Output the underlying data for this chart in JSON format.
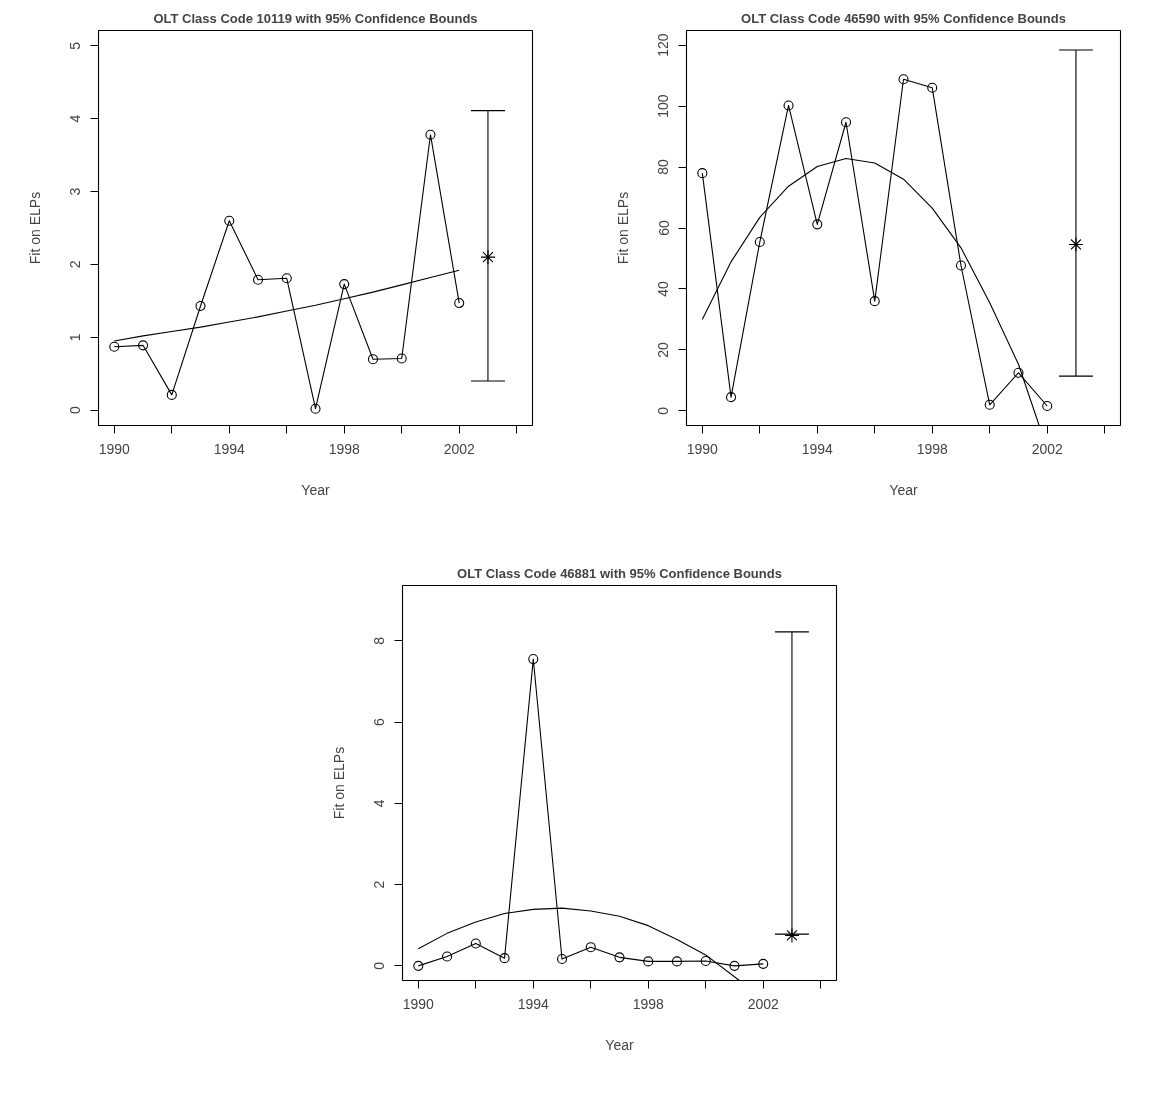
{
  "chart_data": [
    {
      "type": "line",
      "title": "OLT Class Code 10119 with 95% Confidence Bounds",
      "xlabel": "Year",
      "ylabel": "Fit on ELPs",
      "x": [
        1990,
        1991,
        1992,
        1993,
        1994,
        1995,
        1996,
        1997,
        1998,
        1999,
        2000,
        2001,
        2002
      ],
      "xlim": [
        1989.45,
        2004.55
      ],
      "xticks": [
        1990,
        {
          "value": 1992,
          "label": null
        },
        1994,
        {
          "value": 1996,
          "label": null
        },
        1998,
        {
          "value": 2000,
          "label": null
        },
        2002,
        {
          "value": 2004,
          "label": null
        }
      ],
      "ylim": [
        -0.21,
        5.21
      ],
      "yticks": [
        0,
        1,
        2,
        3,
        4,
        5
      ],
      "grid": false,
      "series": [
        {
          "color": "#000000",
          "marker": "circle",
          "values": [
            0.87,
            0.89,
            0.21,
            1.43,
            2.6,
            1.79,
            1.81,
            0.02,
            1.73,
            0.7,
            0.71,
            3.78,
            1.47
          ]
        },
        {
          "color": "#000000",
          "marker": "none",
          "values": [
            0.95,
            1.02,
            1.08,
            1.14,
            1.21,
            1.28,
            1.36,
            1.44,
            1.53,
            1.62,
            1.72,
            1.82,
            1.92
          ]
        },
        {
          "type": "scatter",
          "color": "#000000",
          "marker": "cross",
          "x": [
            2003
          ],
          "values": [
            2.1
          ],
          "errors": [
            [
              0.4,
              4.11
            ]
          ]
        }
      ]
    },
    {
      "type": "line",
      "title": "OLT Class Code 46590 with 95% Confidence Bounds",
      "xlabel": "Year",
      "ylabel": "Fit on ELPs",
      "x": [
        1990,
        1991,
        1992,
        1993,
        1994,
        1995,
        1996,
        1997,
        1998,
        1999,
        2000,
        2001,
        2002
      ],
      "xlim": [
        1989.45,
        2004.55
      ],
      "xticks": [
        1990,
        {
          "value": 1992,
          "label": null
        },
        1994,
        {
          "value": 1996,
          "label": null
        },
        1998,
        {
          "value": 2000,
          "label": null
        },
        2002,
        {
          "value": 2004,
          "label": null
        }
      ],
      "ylim": [
        -4.8,
        124.8
      ],
      "yticks": [
        0,
        20,
        40,
        60,
        80,
        100,
        120
      ],
      "grid": false,
      "series": [
        {
          "color": "#000000",
          "marker": "circle",
          "values": [
            78,
            4.5,
            55.4,
            100.2,
            61.2,
            94.7,
            36,
            108.8,
            106,
            47.7,
            2,
            12.5,
            1.6
          ]
        },
        {
          "color": "#000000",
          "marker": "none",
          "x": [
            1990,
            1991,
            1992,
            1993,
            1994,
            1995,
            1996,
            1997,
            1998,
            1999,
            2000,
            2001,
            2001.72
          ],
          "values": [
            30,
            48.9,
            63.5,
            73.7,
            80.2,
            82.8,
            81.3,
            76,
            66.5,
            53.5,
            35.5,
            15.3,
            -4.8
          ]
        },
        {
          "type": "scatter",
          "color": "#000000",
          "marker": "cross",
          "x": [
            2003
          ],
          "values": [
            54.6
          ],
          "errors": [
            [
              11.4,
              118.4
            ]
          ]
        }
      ]
    },
    {
      "type": "line",
      "title": "OLT Class Code 46881 with 95% Confidence Bounds",
      "xlabel": "Year",
      "ylabel": "Fit on ELPs",
      "x": [
        1990,
        1991,
        1992,
        1993,
        1994,
        1995,
        1996,
        1997,
        1998,
        1999,
        2000,
        2001,
        2002
      ],
      "xlim": [
        1989.45,
        2004.55
      ],
      "xticks": [
        1990,
        {
          "value": 1992,
          "label": null
        },
        1994,
        {
          "value": 1996,
          "label": null
        },
        1998,
        {
          "value": 2000,
          "label": null
        },
        2002,
        {
          "value": 2004,
          "label": null
        }
      ],
      "ylim": [
        -0.36,
        9.36
      ],
      "yticks": [
        0,
        2,
        4,
        6,
        8
      ],
      "grid": false,
      "series": [
        {
          "color": "#000000",
          "marker": "circle",
          "values": [
            0.0,
            0.23,
            0.55,
            0.19,
            7.55,
            0.17,
            0.46,
            0.21,
            0.11,
            0.11,
            0.12,
            0.0,
            0.05
          ]
        },
        {
          "color": "#000000",
          "marker": "none",
          "x": [
            1990,
            1991,
            1992,
            1993,
            1994,
            1995,
            1996,
            1997,
            1998,
            1999,
            2000,
            2001.17
          ],
          "values": [
            0.42,
            0.8,
            1.08,
            1.29,
            1.39,
            1.42,
            1.35,
            1.22,
            0.99,
            0.65,
            0.27,
            -0.36
          ]
        },
        {
          "type": "scatter",
          "color": "#000000",
          "marker": "cross",
          "x": [
            2003
          ],
          "values": [
            0.75
          ],
          "errors": [
            [
              0.78,
              8.22
            ]
          ]
        }
      ]
    }
  ]
}
